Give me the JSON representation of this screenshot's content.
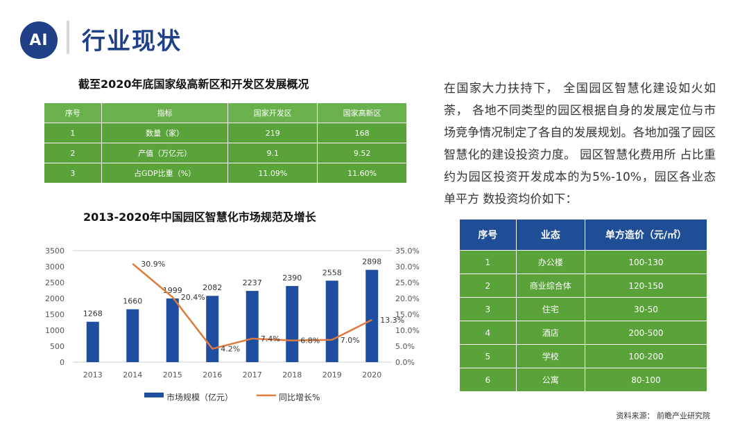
{
  "header": {
    "logo_text": "AI",
    "title": "行业现状"
  },
  "table1": {
    "title": "截至2020年底国家级高新区和开发区发展概况",
    "headers": [
      "序号",
      "指标",
      "国家开发区",
      "国家高新区"
    ],
    "rows": [
      [
        "1",
        "数量（家）",
        "219",
        "168"
      ],
      [
        "2",
        "产值（万亿元）",
        "9.1",
        "9.52"
      ],
      [
        "3",
        "占GDP比重（%）",
        "11.09%",
        "11.60%"
      ]
    ]
  },
  "paragraph": "在国家大力扶持下， 全国园区智慧化建设如火如荼， 各地不同类型的园区根据自身的发展定位与市场竞争情况制定了各自的发展规划。各地加强了园区智慧化的建设投资力度。 园区智慧化费用所 占比重约为园区投资开发成本的为5%-10%，园区各业态单平方 数投资均价如下：",
  "table2": {
    "headers": [
      "序号",
      "业态",
      "单方造价（元/㎡）"
    ],
    "rows": [
      [
        "1",
        "办公楼",
        "100-130"
      ],
      [
        "2",
        "商业综合体",
        "120-150"
      ],
      [
        "3",
        "住宅",
        "30-50"
      ],
      [
        "4",
        "酒店",
        "200-500"
      ],
      [
        "5",
        "学校",
        "100-200"
      ],
      [
        "6",
        "公寓",
        "80-100"
      ]
    ]
  },
  "source": "资料来源： 前瞻产业研究院",
  "chart_data": {
    "type": "bar",
    "title": "2013-2020年中国园区智慧化市场规范及增长",
    "categories": [
      "2013",
      "2014",
      "2015",
      "2016",
      "2017",
      "2018",
      "2019",
      "2020"
    ],
    "series": [
      {
        "name": "市场规模（亿元）",
        "type": "bar",
        "axis": "left",
        "color": "#1f4ea0",
        "values": [
          1268,
          1660,
          1999,
          2082,
          2237,
          2390,
          2558,
          2898
        ],
        "labels": [
          "1268",
          "1660",
          "1999",
          "2082",
          "2237",
          "2390",
          "2558",
          "2898"
        ]
      },
      {
        "name": "同比增长%",
        "type": "line",
        "axis": "right",
        "color": "#e07a3a",
        "values": [
          30.9,
          20.4,
          4.2,
          7.4,
          6.8,
          7.0,
          13.3
        ],
        "x": [
          "2014",
          "2015",
          "2016",
          "2017",
          "2018",
          "2019",
          "2020"
        ],
        "labels": [
          "30.9%",
          "20.4%",
          "4.2%",
          "7.4%",
          "6.8%",
          "7.0%",
          "13.3%"
        ]
      }
    ],
    "ylim": [
      0,
      3500
    ],
    "yticks": [
      "0",
      "500",
      "1000",
      "1500",
      "2000",
      "2500",
      "3000",
      "3500"
    ],
    "y2lim": [
      0,
      35
    ],
    "y2ticks": [
      "0.0%",
      "5.0%",
      "10.0%",
      "15.0%",
      "20.0%",
      "25.0%",
      "30.0%",
      "35.0%"
    ],
    "legend": "bottom",
    "grid": false
  }
}
